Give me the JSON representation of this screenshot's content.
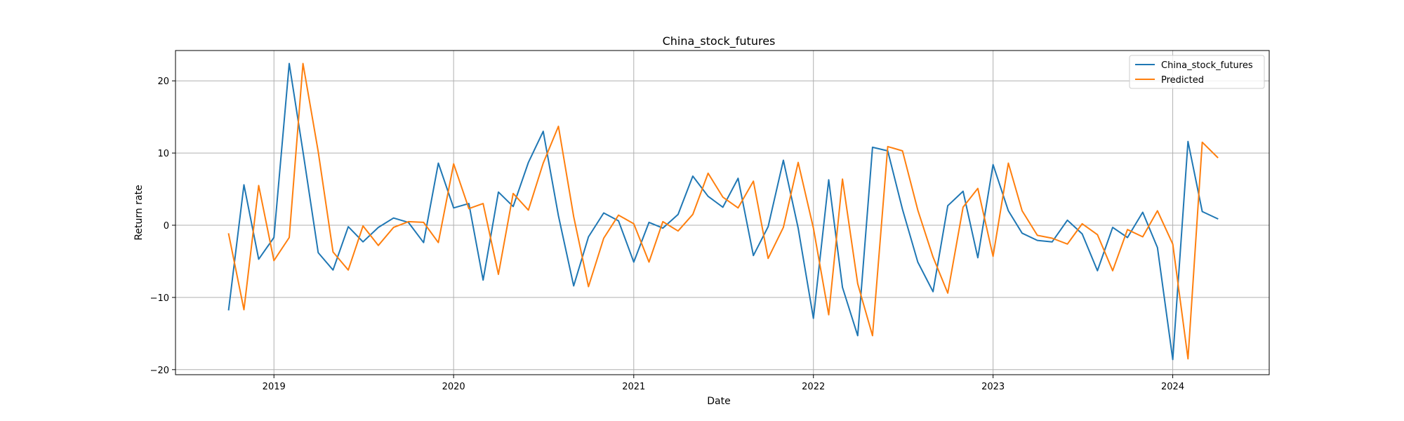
{
  "chart_data": {
    "type": "line",
    "title": "China_stock_futures",
    "xlabel": "Date",
    "ylabel": "Return rate",
    "x_tick_labels": [
      "2019",
      "2020",
      "2021",
      "2022",
      "2023",
      "2024"
    ],
    "y_ticks": [
      -20,
      -10,
      0,
      10,
      20
    ],
    "ylim": [
      -20.7,
      24.2
    ],
    "xlim": [
      "2018-06-15",
      "2024-07-15"
    ],
    "grid": true,
    "legend_position": "top-right",
    "series": [
      {
        "name": "China_stock_futures",
        "color": "#1f77b4",
        "points": [
          [
            "2018-10",
            -11.7
          ],
          [
            "2018-11",
            5.6
          ],
          [
            "2018-12",
            -4.7
          ],
          [
            "2019-01",
            -1.7
          ],
          [
            "2019-02",
            22.4
          ],
          [
            "2019-03",
            10.2
          ],
          [
            "2019-04",
            -3.8
          ],
          [
            "2019-05",
            -6.2
          ],
          [
            "2019-06",
            -0.2
          ],
          [
            "2019-07",
            -2.3
          ],
          [
            "2019-08",
            -0.3
          ],
          [
            "2019-09",
            1.0
          ],
          [
            "2019-10",
            0.4
          ],
          [
            "2019-11",
            -2.4
          ],
          [
            "2019-12",
            8.6
          ],
          [
            "2020-01",
            2.4
          ],
          [
            "2020-02",
            3.0
          ],
          [
            "2020-03",
            -7.6
          ],
          [
            "2020-04",
            4.6
          ],
          [
            "2020-05",
            2.6
          ],
          [
            "2020-06",
            8.7
          ],
          [
            "2020-07",
            13.0
          ],
          [
            "2020-08",
            1.3
          ],
          [
            "2020-09",
            -8.4
          ],
          [
            "2020-10",
            -1.6
          ],
          [
            "2020-11",
            1.7
          ],
          [
            "2020-12",
            0.6
          ],
          [
            "2021-01",
            -5.1
          ],
          [
            "2021-02",
            0.4
          ],
          [
            "2021-03",
            -0.4
          ],
          [
            "2021-04",
            1.5
          ],
          [
            "2021-05",
            6.8
          ],
          [
            "2021-06",
            4.0
          ],
          [
            "2021-07",
            2.5
          ],
          [
            "2021-08",
            6.5
          ],
          [
            "2021-09",
            -4.2
          ],
          [
            "2021-10",
            -0.2
          ],
          [
            "2021-11",
            9.0
          ],
          [
            "2021-12",
            -0.4
          ],
          [
            "2022-01",
            -12.9
          ],
          [
            "2022-02",
            6.3
          ],
          [
            "2022-03",
            -8.6
          ],
          [
            "2022-04",
            -15.3
          ],
          [
            "2022-05",
            10.8
          ],
          [
            "2022-06",
            10.3
          ],
          [
            "2022-07",
            2.2
          ],
          [
            "2022-08",
            -5.1
          ],
          [
            "2022-09",
            -9.2
          ],
          [
            "2022-10",
            2.7
          ],
          [
            "2022-11",
            4.7
          ],
          [
            "2022-12",
            -4.5
          ],
          [
            "2023-01",
            8.4
          ],
          [
            "2023-02",
            2.0
          ],
          [
            "2023-03",
            -1.1
          ],
          [
            "2023-04",
            -2.1
          ],
          [
            "2023-05",
            -2.3
          ],
          [
            "2023-06",
            0.7
          ],
          [
            "2023-07",
            -1.2
          ],
          [
            "2023-08",
            -6.3
          ],
          [
            "2023-09",
            -0.3
          ],
          [
            "2023-10",
            -1.7
          ],
          [
            "2023-11",
            1.8
          ],
          [
            "2023-12",
            -3.1
          ],
          [
            "2024-01",
            -18.6
          ],
          [
            "2024-02",
            11.6
          ],
          [
            "2024-03",
            1.9
          ],
          [
            "2024-04",
            0.9
          ]
        ]
      },
      {
        "name": "Predicted",
        "color": "#ff7f0e",
        "points": [
          [
            "2018-10",
            -1.2
          ],
          [
            "2018-11",
            -11.7
          ],
          [
            "2018-12",
            5.5
          ],
          [
            "2019-01",
            -4.9
          ],
          [
            "2019-02",
            -1.7
          ],
          [
            "2019-03",
            22.4
          ],
          [
            "2019-04",
            10.2
          ],
          [
            "2019-05",
            -3.7
          ],
          [
            "2019-06",
            -6.2
          ],
          [
            "2019-07",
            -0.1
          ],
          [
            "2019-08",
            -2.8
          ],
          [
            "2019-09",
            -0.3
          ],
          [
            "2019-10",
            0.5
          ],
          [
            "2019-11",
            0.4
          ],
          [
            "2019-12",
            -2.4
          ],
          [
            "2020-01",
            8.5
          ],
          [
            "2020-02",
            2.3
          ],
          [
            "2020-03",
            3.0
          ],
          [
            "2020-04",
            -6.8
          ],
          [
            "2020-05",
            4.4
          ],
          [
            "2020-06",
            2.1
          ],
          [
            "2020-07",
            8.6
          ],
          [
            "2020-08",
            13.7
          ],
          [
            "2020-09",
            1.2
          ],
          [
            "2020-10",
            -8.5
          ],
          [
            "2020-11",
            -1.8
          ],
          [
            "2020-12",
            1.4
          ],
          [
            "2021-01",
            0.2
          ],
          [
            "2021-02",
            -5.1
          ],
          [
            "2021-03",
            0.5
          ],
          [
            "2021-04",
            -0.8
          ],
          [
            "2021-05",
            1.5
          ],
          [
            "2021-06",
            7.2
          ],
          [
            "2021-07",
            3.9
          ],
          [
            "2021-08",
            2.4
          ],
          [
            "2021-09",
            6.1
          ],
          [
            "2021-10",
            -4.6
          ],
          [
            "2021-11",
            -0.3
          ],
          [
            "2021-12",
            8.7
          ],
          [
            "2022-01",
            -0.4
          ],
          [
            "2022-02",
            -12.4
          ],
          [
            "2022-03",
            6.4
          ],
          [
            "2022-04",
            -8.1
          ],
          [
            "2022-05",
            -15.3
          ],
          [
            "2022-06",
            10.9
          ],
          [
            "2022-07",
            10.3
          ],
          [
            "2022-08",
            2.1
          ],
          [
            "2022-09",
            -4.4
          ],
          [
            "2022-10",
            -9.4
          ],
          [
            "2022-11",
            2.5
          ],
          [
            "2022-12",
            5.1
          ],
          [
            "2023-01",
            -4.3
          ],
          [
            "2023-02",
            8.6
          ],
          [
            "2023-03",
            2.0
          ],
          [
            "2023-04",
            -1.4
          ],
          [
            "2023-05",
            -1.8
          ],
          [
            "2023-06",
            -2.6
          ],
          [
            "2023-07",
            0.2
          ],
          [
            "2023-08",
            -1.3
          ],
          [
            "2023-09",
            -6.3
          ],
          [
            "2023-10",
            -0.6
          ],
          [
            "2023-11",
            -1.6
          ],
          [
            "2023-12",
            2.0
          ],
          [
            "2024-01",
            -2.6
          ],
          [
            "2024-02",
            -18.5
          ],
          [
            "2024-03",
            11.5
          ],
          [
            "2024-04",
            9.4
          ]
        ]
      }
    ]
  }
}
